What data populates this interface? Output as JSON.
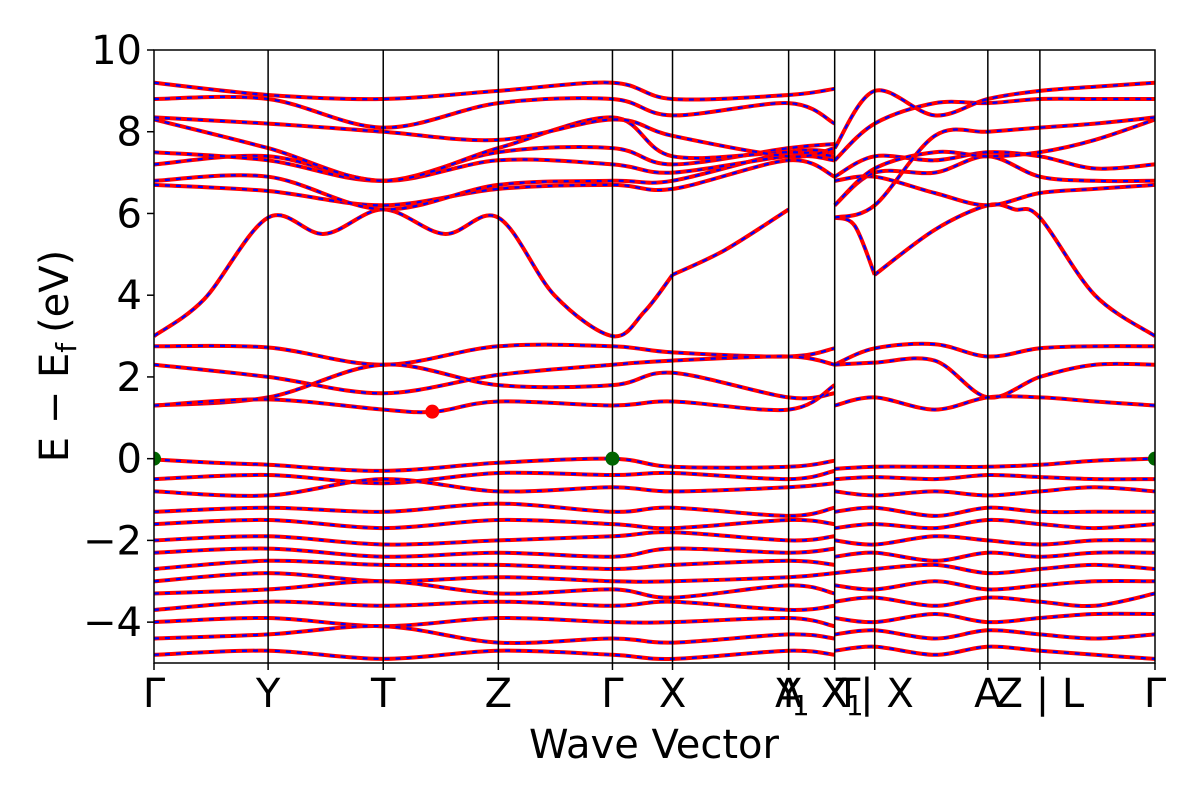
{
  "chart_data": {
    "type": "line",
    "title": "",
    "xlabel": "Wave Vector",
    "ylabel": "E − E_f (eV)",
    "ylabel_parts": {
      "main": "E − E",
      "sub": "f",
      "unit": "(eV)"
    },
    "ylim": [
      -5,
      10
    ],
    "yticks": [
      -4,
      -2,
      0,
      2,
      4,
      6,
      8,
      10
    ],
    "ytick_labels": [
      "−4",
      "−2",
      "0",
      "2",
      "4",
      "6",
      "8",
      "10"
    ],
    "xlim": [
      0,
      1
    ],
    "kpoint_labels": [
      {
        "x": 0.0,
        "label": "Γ"
      },
      {
        "x": 0.114,
        "label": "Y"
      },
      {
        "x": 0.229,
        "label": "T"
      },
      {
        "x": 0.344,
        "label": "Z"
      },
      {
        "x": 0.458,
        "label": "Γ"
      },
      {
        "x": 0.518,
        "label": "X"
      },
      {
        "x": 0.634,
        "label": "A"
      },
      {
        "x": 0.634,
        "label": "Y"
      },
      {
        "x": 0.68,
        "label": "X"
      },
      {
        "x": 0.68,
        "label": "X"
      },
      {
        "x": 0.72,
        "label": "T| X"
      },
      {
        "x": 0.833,
        "label": "A"
      },
      {
        "x": 0.885,
        "label": "Z | L"
      },
      {
        "x": 1.0,
        "label": "Γ"
      }
    ],
    "kpoint_subscripts": [
      {
        "x": 0.646,
        "label": "1"
      },
      {
        "x": 0.7,
        "label": "1"
      }
    ],
    "vlines": [
      0.114,
      0.229,
      0.344,
      0.458,
      0.518,
      0.634,
      0.68,
      0.72,
      0.833,
      0.885
    ],
    "series": [
      {
        "color": "#ff0000",
        "style": "solid"
      },
      {
        "color": "#0000ff",
        "style": "dashed"
      }
    ],
    "bands": [
      {
        "x": [
          0,
          0.05,
          0.114,
          0.17,
          0.229,
          0.29,
          0.344,
          0.4,
          0.458,
          0.49,
          0.518
        ],
        "y": [
          3.0,
          3.9,
          5.9,
          5.5,
          6.1,
          5.5,
          5.9,
          4.0,
          3.0,
          3.6,
          4.5
        ]
      },
      {
        "x": [
          0.518,
          0.57,
          0.634
        ],
        "y": [
          4.5,
          5.1,
          6.1
        ]
      },
      {
        "x": [
          0.72,
          0.78,
          0.833,
          0.86,
          0.885,
          0.94,
          1.0
        ],
        "y": [
          4.5,
          5.6,
          6.2,
          6.1,
          5.9,
          4.0,
          3.0
        ]
      },
      {
        "x": [
          0.68,
          0.7,
          0.72
        ],
        "y": [
          5.9,
          5.7,
          4.5
        ]
      },
      {
        "x": [
          0,
          0.114,
          0.229,
          0.344,
          0.458,
          0.518,
          0.634,
          0.68
        ],
        "y": [
          2.75,
          2.72,
          2.3,
          2.75,
          2.75,
          2.6,
          2.5,
          2.7
        ]
      },
      {
        "x": [
          0,
          0.114,
          0.229,
          0.344,
          0.458,
          0.518,
          0.634,
          0.68
        ],
        "y": [
          2.3,
          2.0,
          1.6,
          2.05,
          2.3,
          2.4,
          2.5,
          2.3
        ]
      },
      {
        "x": [
          0,
          0.114,
          0.229,
          0.344,
          0.458,
          0.518,
          0.634,
          0.68
        ],
        "y": [
          1.3,
          1.5,
          2.3,
          1.8,
          1.8,
          2.1,
          1.5,
          1.6
        ]
      },
      {
        "x": [
          0,
          0.114,
          0.229,
          0.28,
          0.344,
          0.458,
          0.518,
          0.634,
          0.68
        ],
        "y": [
          1.3,
          1.45,
          1.2,
          1.15,
          1.4,
          1.3,
          1.4,
          1.2,
          1.8
        ]
      },
      {
        "x": [
          0.68,
          0.72,
          0.78,
          0.833,
          0.885,
          0.94,
          1.0
        ],
        "y": [
          2.3,
          2.7,
          2.8,
          2.5,
          2.7,
          2.75,
          2.75
        ]
      },
      {
        "x": [
          0.68,
          0.72,
          0.78,
          0.833,
          0.885,
          0.94,
          1.0
        ],
        "y": [
          2.3,
          2.35,
          2.4,
          1.5,
          2.0,
          2.3,
          2.3
        ]
      },
      {
        "x": [
          0.68,
          0.72,
          0.78,
          0.833,
          0.885,
          0.94,
          1.0
        ],
        "y": [
          1.3,
          1.5,
          1.2,
          1.5,
          1.5,
          1.4,
          1.3
        ]
      },
      {
        "x": [
          0,
          0.06,
          0.114,
          0.229,
          0.344,
          0.458,
          0.518,
          0.634,
          0.68
        ],
        "y": [
          -0.02,
          -0.1,
          -0.15,
          -0.3,
          -0.1,
          0.0,
          -0.2,
          -0.2,
          -0.05
        ]
      },
      {
        "x": [
          0,
          0.114,
          0.229,
          0.344,
          0.458,
          0.518,
          0.634,
          0.68
        ],
        "y": [
          -0.5,
          -0.4,
          -0.6,
          -0.35,
          -0.4,
          -0.35,
          -0.5,
          -0.3
        ]
      },
      {
        "x": [
          0,
          0.114,
          0.229,
          0.344,
          0.458,
          0.518,
          0.634,
          0.68
        ],
        "y": [
          -0.8,
          -0.9,
          -0.5,
          -0.8,
          -0.7,
          -0.8,
          -0.7,
          -0.6
        ]
      },
      {
        "x": [
          0,
          0.114,
          0.229,
          0.344,
          0.458,
          0.518,
          0.634,
          0.68
        ],
        "y": [
          -1.3,
          -1.2,
          -1.3,
          -1.1,
          -1.3,
          -1.2,
          -1.4,
          -1.2
        ]
      },
      {
        "x": [
          0,
          0.114,
          0.229,
          0.344,
          0.458,
          0.518,
          0.634,
          0.68
        ],
        "y": [
          -1.6,
          -1.5,
          -1.7,
          -1.5,
          -1.6,
          -1.7,
          -1.5,
          -1.6
        ]
      },
      {
        "x": [
          0,
          0.114,
          0.229,
          0.344,
          0.458,
          0.518,
          0.634,
          0.68
        ],
        "y": [
          -2.0,
          -1.9,
          -2.1,
          -2.0,
          -1.9,
          -1.8,
          -2.0,
          -1.9
        ]
      },
      {
        "x": [
          0,
          0.114,
          0.229,
          0.344,
          0.458,
          0.518,
          0.634,
          0.68
        ],
        "y": [
          -2.3,
          -2.2,
          -2.4,
          -2.3,
          -2.4,
          -2.2,
          -2.3,
          -2.2
        ]
      },
      {
        "x": [
          0,
          0.114,
          0.229,
          0.344,
          0.458,
          0.518,
          0.634,
          0.68
        ],
        "y": [
          -2.7,
          -2.5,
          -2.6,
          -2.6,
          -2.7,
          -2.6,
          -2.5,
          -2.6
        ]
      },
      {
        "x": [
          0,
          0.114,
          0.229,
          0.344,
          0.458,
          0.518,
          0.634,
          0.68
        ],
        "y": [
          -3.0,
          -2.8,
          -3.0,
          -2.9,
          -3.0,
          -3.0,
          -2.9,
          -2.8
        ]
      },
      {
        "x": [
          0,
          0.114,
          0.229,
          0.344,
          0.458,
          0.518,
          0.634,
          0.68
        ],
        "y": [
          -3.3,
          -3.2,
          -3.0,
          -3.3,
          -3.2,
          -3.4,
          -3.1,
          -3.3
        ]
      },
      {
        "x": [
          0,
          0.114,
          0.229,
          0.344,
          0.458,
          0.518,
          0.634,
          0.68
        ],
        "y": [
          -3.7,
          -3.5,
          -3.6,
          -3.5,
          -3.6,
          -3.5,
          -3.7,
          -3.6
        ]
      },
      {
        "x": [
          0,
          0.114,
          0.229,
          0.344,
          0.458,
          0.518,
          0.634,
          0.68
        ],
        "y": [
          -4.0,
          -3.9,
          -4.1,
          -3.9,
          -4.0,
          -4.0,
          -3.9,
          -4.1
        ]
      },
      {
        "x": [
          0,
          0.114,
          0.229,
          0.344,
          0.458,
          0.518,
          0.634,
          0.68
        ],
        "y": [
          -4.4,
          -4.3,
          -4.1,
          -4.5,
          -4.4,
          -4.5,
          -4.3,
          -4.4
        ]
      },
      {
        "x": [
          0,
          0.114,
          0.229,
          0.344,
          0.458,
          0.518,
          0.634,
          0.68
        ],
        "y": [
          -4.8,
          -4.7,
          -4.9,
          -4.7,
          -4.8,
          -4.9,
          -4.7,
          -4.8
        ]
      },
      {
        "x": [
          0.68,
          0.72,
          0.78,
          0.833,
          0.885,
          0.94,
          1.0
        ],
        "y": [
          -0.25,
          -0.2,
          -0.2,
          -0.2,
          -0.15,
          -0.05,
          0.0
        ]
      },
      {
        "x": [
          0.68,
          0.72,
          0.78,
          0.833,
          0.885,
          0.94,
          1.0
        ],
        "y": [
          -0.5,
          -0.45,
          -0.5,
          -0.4,
          -0.45,
          -0.5,
          -0.5
        ]
      },
      {
        "x": [
          0.68,
          0.72,
          0.78,
          0.833,
          0.885,
          0.94,
          1.0
        ],
        "y": [
          -0.8,
          -0.9,
          -0.8,
          -0.9,
          -0.8,
          -0.7,
          -0.8
        ]
      },
      {
        "x": [
          0.68,
          0.72,
          0.78,
          0.833,
          0.885,
          0.94,
          1.0
        ],
        "y": [
          -1.3,
          -1.2,
          -1.4,
          -1.2,
          -1.3,
          -1.3,
          -1.3
        ]
      },
      {
        "x": [
          0.68,
          0.72,
          0.78,
          0.833,
          0.885,
          0.94,
          1.0
        ],
        "y": [
          -1.7,
          -1.6,
          -1.7,
          -1.5,
          -1.6,
          -1.7,
          -1.6
        ]
      },
      {
        "x": [
          0.68,
          0.72,
          0.78,
          0.833,
          0.885,
          0.94,
          1.0
        ],
        "y": [
          -2.0,
          -2.1,
          -1.9,
          -2.0,
          -2.1,
          -2.0,
          -2.0
        ]
      },
      {
        "x": [
          0.68,
          0.72,
          0.78,
          0.833,
          0.885,
          0.94,
          1.0
        ],
        "y": [
          -2.4,
          -2.3,
          -2.5,
          -2.3,
          -2.4,
          -2.3,
          -2.3
        ]
      },
      {
        "x": [
          0.68,
          0.72,
          0.78,
          0.833,
          0.885,
          0.94,
          1.0
        ],
        "y": [
          -2.8,
          -2.7,
          -2.6,
          -2.8,
          -2.7,
          -2.6,
          -2.7
        ]
      },
      {
        "x": [
          0.68,
          0.72,
          0.78,
          0.833,
          0.885,
          0.94,
          1.0
        ],
        "y": [
          -3.1,
          -3.2,
          -3.0,
          -3.2,
          -3.1,
          -3.0,
          -3.0
        ]
      },
      {
        "x": [
          0.68,
          0.72,
          0.78,
          0.833,
          0.885,
          0.94,
          1.0
        ],
        "y": [
          -3.5,
          -3.4,
          -3.6,
          -3.4,
          -3.5,
          -3.6,
          -3.3
        ]
      },
      {
        "x": [
          0.68,
          0.72,
          0.78,
          0.833,
          0.885,
          0.94,
          1.0
        ],
        "y": [
          -3.9,
          -4.0,
          -3.8,
          -4.0,
          -3.9,
          -3.8,
          -3.8
        ]
      },
      {
        "x": [
          0.68,
          0.72,
          0.78,
          0.833,
          0.885,
          0.94,
          1.0
        ],
        "y": [
          -4.3,
          -4.2,
          -4.4,
          -4.2,
          -4.3,
          -4.4,
          -4.3
        ]
      },
      {
        "x": [
          0.68,
          0.72,
          0.78,
          0.833,
          0.885,
          0.94,
          1.0
        ],
        "y": [
          -4.7,
          -4.6,
          -4.8,
          -4.6,
          -4.7,
          -4.8,
          -4.9
        ]
      },
      {
        "x": [
          0,
          0.114,
          0.229,
          0.344,
          0.458,
          0.518,
          0.634,
          0.68
        ],
        "y": [
          6.7,
          6.55,
          6.2,
          6.6,
          6.7,
          6.6,
          7.3,
          6.9
        ]
      },
      {
        "x": [
          0,
          0.114,
          0.229,
          0.344,
          0.458,
          0.518,
          0.634,
          0.68
        ],
        "y": [
          6.8,
          6.9,
          6.1,
          6.7,
          6.8,
          6.8,
          7.5,
          7.5
        ]
      },
      {
        "x": [
          0,
          0.114,
          0.229,
          0.344,
          0.458,
          0.518,
          0.634,
          0.68
        ],
        "y": [
          7.2,
          7.4,
          6.8,
          7.3,
          7.2,
          7.0,
          7.4,
          7.3
        ]
      },
      {
        "x": [
          0,
          0.114,
          0.229,
          0.344,
          0.458,
          0.518,
          0.634,
          0.68
        ],
        "y": [
          7.5,
          7.3,
          6.8,
          7.5,
          7.6,
          7.2,
          7.6,
          7.7
        ]
      },
      {
        "x": [
          0,
          0.114,
          0.229,
          0.344,
          0.458,
          0.518,
          0.634,
          0.68
        ],
        "y": [
          8.3,
          7.6,
          6.8,
          7.6,
          8.35,
          7.4,
          7.5,
          7.4
        ]
      },
      {
        "x": [
          0,
          0.114,
          0.229,
          0.344,
          0.458,
          0.518,
          0.634,
          0.68
        ],
        "y": [
          8.35,
          8.2,
          8.0,
          7.8,
          8.3,
          7.9,
          7.4,
          7.6
        ]
      },
      {
        "x": [
          0,
          0.114,
          0.229,
          0.344,
          0.458,
          0.518,
          0.634,
          0.68
        ],
        "y": [
          8.8,
          8.8,
          8.1,
          8.7,
          8.8,
          8.4,
          8.7,
          8.2
        ]
      },
      {
        "x": [
          0,
          0.114,
          0.229,
          0.344,
          0.458,
          0.518,
          0.634,
          0.68
        ],
        "y": [
          9.2,
          8.9,
          8.8,
          9.0,
          9.2,
          8.8,
          8.9,
          9.05
        ]
      },
      {
        "x": [
          0.68,
          0.72,
          0.78,
          0.833,
          0.885,
          0.94,
          1.0
        ],
        "y": [
          6.8,
          6.9,
          6.5,
          6.2,
          6.5,
          6.6,
          6.7
        ]
      },
      {
        "x": [
          0.68,
          0.72,
          0.78,
          0.833,
          0.885,
          0.94,
          1.0
        ],
        "y": [
          6.2,
          7.0,
          7.0,
          7.4,
          6.9,
          6.8,
          6.8
        ]
      },
      {
        "x": [
          0.68,
          0.72,
          0.78,
          0.833,
          0.885,
          0.94,
          1.0
        ],
        "y": [
          6.9,
          7.4,
          7.3,
          7.5,
          7.4,
          7.1,
          7.2
        ]
      },
      {
        "x": [
          0.68,
          0.72,
          0.78,
          0.833,
          0.885,
          0.94,
          1.0
        ],
        "y": [
          6.2,
          7.1,
          7.5,
          7.4,
          7.5,
          7.8,
          8.3
        ]
      },
      {
        "x": [
          0.68,
          0.72,
          0.78,
          0.833,
          0.885,
          0.94,
          1.0
        ],
        "y": [
          5.9,
          6.2,
          7.9,
          8.0,
          8.1,
          8.2,
          8.35
        ]
      },
      {
        "x": [
          0.68,
          0.72,
          0.78,
          0.833,
          0.885,
          0.94,
          1.0
        ],
        "y": [
          7.3,
          8.2,
          8.7,
          8.7,
          8.8,
          8.8,
          8.8
        ]
      },
      {
        "x": [
          0.68,
          0.72,
          0.78,
          0.833,
          0.885,
          0.94,
          1.0
        ],
        "y": [
          7.6,
          9.0,
          8.4,
          8.8,
          9.0,
          9.1,
          9.2
        ]
      }
    ],
    "markers": [
      {
        "x": 0.0,
        "y": 0.0,
        "color": "#006400"
      },
      {
        "x": 0.458,
        "y": 0.0,
        "color": "#006400"
      },
      {
        "x": 1.0,
        "y": 0.0,
        "color": "#006400"
      },
      {
        "x": 0.278,
        "y": 1.15,
        "color": "#ff0000"
      }
    ]
  }
}
